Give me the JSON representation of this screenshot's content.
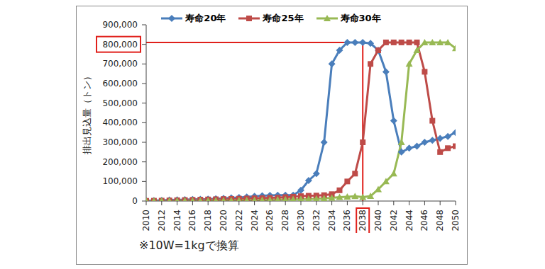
{
  "chart_data": {
    "type": "line",
    "annotation": "※10W=1kgで換算",
    "y_label": "排出見込量（トン）",
    "x": [
      2010,
      2011,
      2012,
      2013,
      2014,
      2015,
      2016,
      2017,
      2018,
      2019,
      2020,
      2021,
      2022,
      2023,
      2024,
      2025,
      2026,
      2027,
      2028,
      2029,
      2030,
      2031,
      2032,
      2033,
      2034,
      2035,
      2036,
      2037,
      2038,
      2039,
      2040,
      2041,
      2042,
      2043,
      2044,
      2045,
      2046,
      2047,
      2048,
      2049,
      2050
    ],
    "series": [
      {
        "name": "寿命20年",
        "color": "#4a7ebb",
        "marker": "diamond",
        "values": [
          2000,
          3000,
          4000,
          5000,
          6000,
          7000,
          8000,
          9000,
          10000,
          12000,
          14000,
          16000,
          18000,
          21000,
          24000,
          27000,
          29000,
          30000,
          30000,
          30000,
          55000,
          105000,
          140000,
          300000,
          700000,
          770000,
          810000,
          810000,
          810000,
          805000,
          770000,
          660000,
          410000,
          250000,
          270000,
          280000,
          300000,
          310000,
          320000,
          330000,
          350000
        ]
      },
      {
        "name": "寿命25年",
        "color": "#be4b48",
        "marker": "square",
        "values": [
          1000,
          1500,
          2000,
          3000,
          4000,
          5000,
          6000,
          7000,
          8000,
          9000,
          10000,
          11000,
          12000,
          13000,
          14000,
          15000,
          16000,
          17000,
          20000,
          22000,
          25000,
          27000,
          28000,
          30000,
          35000,
          55000,
          100000,
          140000,
          300000,
          700000,
          770000,
          810000,
          810000,
          810000,
          810000,
          810000,
          660000,
          410000,
          250000,
          270000,
          280000
        ]
      },
      {
        "name": "寿命30年",
        "color": "#98b954",
        "marker": "triangle",
        "values": [
          500,
          700,
          900,
          1100,
          1300,
          1500,
          1700,
          1900,
          2100,
          2300,
          2600,
          3000,
          3500,
          4000,
          4500,
          5000,
          6000,
          7000,
          8000,
          9000,
          10000,
          11000,
          12000,
          14000,
          16000,
          20000,
          22000,
          24000,
          20000,
          25000,
          60000,
          100000,
          140000,
          300000,
          700000,
          770000,
          810000,
          810000,
          810000,
          810000,
          780000
        ]
      }
    ],
    "xlim": [
      2010,
      2050
    ],
    "xticks": [
      2010,
      2012,
      2014,
      2016,
      2018,
      2020,
      2022,
      2024,
      2026,
      2028,
      2030,
      2032,
      2034,
      2036,
      2038,
      2040,
      2042,
      2044,
      2046,
      2048,
      2050
    ],
    "ylim": [
      0,
      900000
    ],
    "yticks": [
      0,
      {
        "value": 100000,
        "label": "100,000"
      },
      {
        "value": 200000,
        "label": "200,000"
      },
      {
        "value": 300000,
        "label": "300,000"
      },
      {
        "value": 400000,
        "label": "400,000"
      },
      {
        "value": 500000,
        "label": "500,000"
      },
      {
        "value": 600000,
        "label": "600,000"
      },
      {
        "value": 700000,
        "label": "700,000"
      },
      {
        "value": 800000,
        "label": "800,000"
      },
      {
        "value": 900000,
        "label": "900,000"
      }
    ],
    "grid": false,
    "legend": "top"
  }
}
